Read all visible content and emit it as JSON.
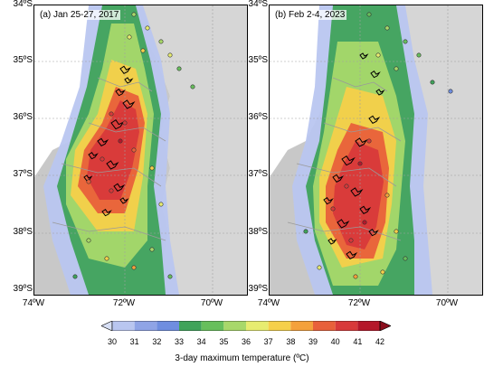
{
  "panels": [
    {
      "id": "a",
      "label": "(a) Jan 25-27, 2017"
    },
    {
      "id": "b",
      "label": "(b) Feb 2-4, 2023"
    }
  ],
  "axes": {
    "lat_ticks": [
      "34ºS",
      "35ºS",
      "36ºS",
      "37ºS",
      "38ºS",
      "39ºS"
    ],
    "lon_ticks": [
      "74ºW",
      "72ºW",
      "70ºW"
    ]
  },
  "colorbar": {
    "title": "3-day maximum temperature (ºC)",
    "ticks": [
      "30",
      "31",
      "32",
      "33",
      "34",
      "35",
      "36",
      "37",
      "38",
      "39",
      "40",
      "41",
      "42"
    ],
    "colors": [
      "#d7dff5",
      "#b9c6f0",
      "#8fa4e6",
      "#6f8ee0",
      "#3fa35a",
      "#67bf5c",
      "#a8d86a",
      "#e7ec70",
      "#f6d04a",
      "#f4a13c",
      "#e8603a",
      "#d8393a",
      "#b5172a",
      "#8a0d1c"
    ]
  },
  "map_colors": {
    "land": "#d6d6d6",
    "ocean": "#ffffff",
    "border": "#9a9a9a",
    "fire": "#000000",
    "station_outline": "#333333"
  }
}
